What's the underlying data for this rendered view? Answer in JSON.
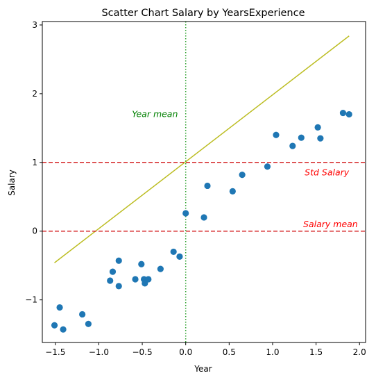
{
  "chart_data": {
    "type": "scatter",
    "title": "Scatter Chart Salary by YearsExperience",
    "xlabel": "Year",
    "ylabel": "Salary",
    "xlim": [
      -1.65,
      2.07
    ],
    "ylim": [
      -1.62,
      3.05
    ],
    "xticks": [
      -1.5,
      -1.0,
      -0.5,
      0.0,
      0.5,
      1.0,
      1.5,
      2.0
    ],
    "xtick_labels": [
      "−1.5",
      "−1.0",
      "−0.5",
      "0.0",
      "0.5",
      "1.0",
      "1.5",
      "2.0"
    ],
    "yticks": [
      -1,
      0,
      1,
      2,
      3
    ],
    "ytick_labels": [
      "−1",
      "0",
      "1",
      "2",
      "3"
    ],
    "grid": false,
    "colors": {
      "points": "#1f77b4",
      "fit_line": "#bcbd22",
      "hlines": "#d62728",
      "vline": "#2ca02c",
      "year_mean_text": "#008000",
      "salary_text": "#ff0000"
    },
    "series": [
      {
        "points": [
          {
            "x": -1.51,
            "y": -1.37
          },
          {
            "x": -1.45,
            "y": -1.11
          },
          {
            "x": -1.41,
            "y": -1.43
          },
          {
            "x": -1.19,
            "y": -1.21
          },
          {
            "x": -1.12,
            "y": -1.35
          },
          {
            "x": -0.87,
            "y": -0.72
          },
          {
            "x": -0.84,
            "y": -0.59
          },
          {
            "x": -0.77,
            "y": -0.43
          },
          {
            "x": -0.77,
            "y": -0.8
          },
          {
            "x": -0.58,
            "y": -0.7
          },
          {
            "x": -0.51,
            "y": -0.48
          },
          {
            "x": -0.48,
            "y": -0.7
          },
          {
            "x": -0.47,
            "y": -0.76
          },
          {
            "x": -0.43,
            "y": -0.7
          },
          {
            "x": -0.29,
            "y": -0.55
          },
          {
            "x": -0.14,
            "y": -0.3
          },
          {
            "x": -0.07,
            "y": -0.37
          },
          {
            "x": 0.0,
            "y": 0.26
          },
          {
            "x": 0.21,
            "y": 0.2
          },
          {
            "x": 0.25,
            "y": 0.66
          },
          {
            "x": 0.54,
            "y": 0.58
          },
          {
            "x": 0.65,
            "y": 0.82
          },
          {
            "x": 0.94,
            "y": 0.94
          },
          {
            "x": 1.04,
            "y": 1.4
          },
          {
            "x": 1.23,
            "y": 1.24
          },
          {
            "x": 1.33,
            "y": 1.36
          },
          {
            "x": 1.52,
            "y": 1.51
          },
          {
            "x": 1.55,
            "y": 1.35
          },
          {
            "x": 1.81,
            "y": 1.72
          },
          {
            "x": 1.88,
            "y": 1.7
          }
        ]
      }
    ],
    "fit_line": {
      "x": [
        -1.51,
        1.88
      ],
      "y": [
        -0.46,
        2.84
      ]
    },
    "hlines": [
      {
        "y": 1.0,
        "style": "dashed"
      },
      {
        "y": 0.0,
        "style": "dashed"
      }
    ],
    "vlines": [
      {
        "x": 0.0,
        "style": "dotted"
      }
    ],
    "annotations": [
      {
        "id": "year-mean",
        "text": "Year mean",
        "x": -0.09,
        "y": 1.7,
        "anchor": "end"
      },
      {
        "id": "std-salary",
        "text": "Std Salary",
        "x": 1.88,
        "y": 0.85,
        "anchor": "end"
      },
      {
        "id": "salary-mean",
        "text": "Salary mean",
        "x": 1.98,
        "y": 0.1,
        "anchor": "end"
      }
    ]
  }
}
